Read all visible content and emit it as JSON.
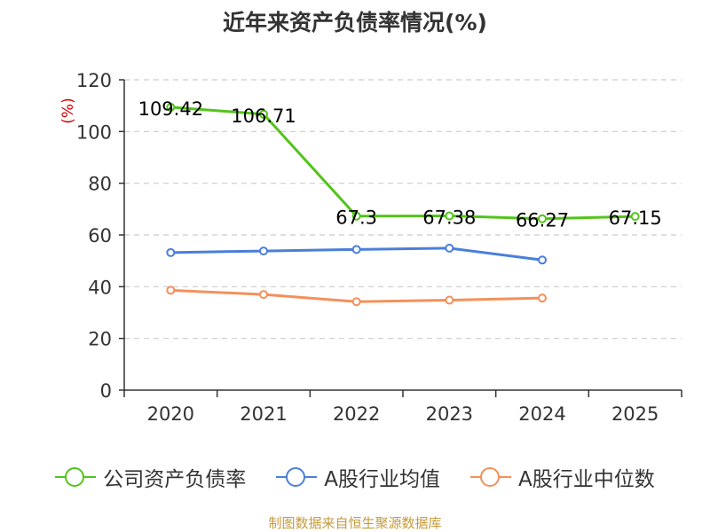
{
  "title": "近年来资产负债率情况(%)",
  "footer": "制图数据来自恒生聚源数据库",
  "chart_data": {
    "type": "line",
    "title": "近年来资产负债率情况(%)",
    "ylabel": "(%)",
    "xlabel": "",
    "ylim": [
      0,
      120
    ],
    "yticks": [
      0,
      20,
      40,
      60,
      80,
      100,
      120
    ],
    "grid": true,
    "legend_position": "bottom",
    "categories": [
      "2020",
      "2021",
      "2022",
      "2023",
      "2024",
      "2025"
    ],
    "series": [
      {
        "name": "公司资产负债率",
        "color": "#52c41a",
        "values": [
          109.42,
          106.71,
          67.3,
          67.38,
          66.27,
          67.15
        ],
        "labels": [
          "109.42",
          "106.71",
          "67.3",
          "67.38",
          "66.27",
          "67.15"
        ]
      },
      {
        "name": "A股行业均值",
        "color": "#4a7fd9",
        "values": [
          53.2,
          53.8,
          54.4,
          54.9,
          50.3,
          null
        ]
      },
      {
        "name": "A股行业中位数",
        "color": "#f4905a",
        "values": [
          38.6,
          37.0,
          34.2,
          34.8,
          35.6,
          null
        ]
      }
    ]
  }
}
